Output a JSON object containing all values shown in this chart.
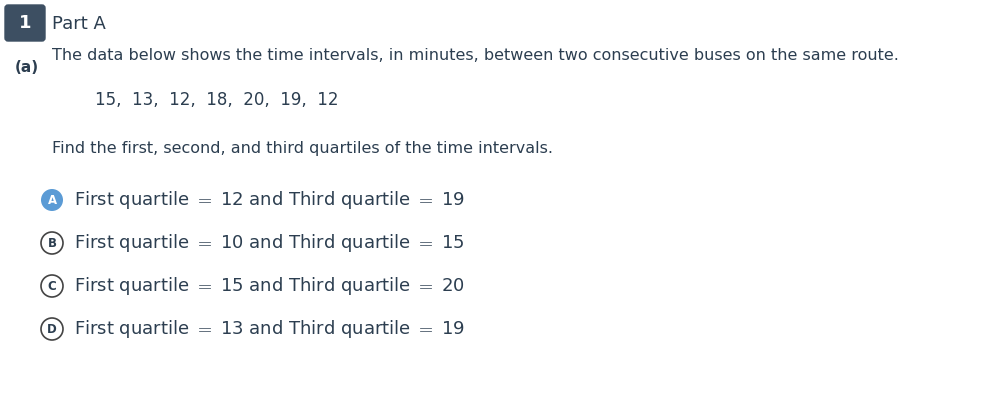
{
  "question_number": "1",
  "part_label": "Part A",
  "part_a_label": "(a)",
  "description": "The data below shows the time intervals, in minutes, between two consecutive buses on the same route.",
  "data_line": "15,  13,  12,  18,  20,  19,  12",
  "question_text": "Find the first, second, and third quartiles of the time intervals.",
  "options": [
    {
      "label": "A",
      "text": "First quartile $=$ 12 and Third quartile $=$ 19",
      "selected": true
    },
    {
      "label": "B",
      "text": "First quartile $=$ 10 and Third quartile $=$ 15",
      "selected": false
    },
    {
      "label": "C",
      "text": "First quartile $=$ 15 and Third quartile $=$ 20",
      "selected": false
    },
    {
      "label": "D",
      "text": "First quartile $=$ 13 and Third quartile $=$ 19",
      "selected": false
    }
  ],
  "number_box_color": "#3d4f62",
  "number_box_text_color": "#ffffff",
  "selected_circle_color": "#5b9bd5",
  "unselected_circle_color": "#ffffff",
  "unselected_circle_edge_color": "#444444",
  "text_color": "#2c3e50",
  "background_color": "#ffffff",
  "font_size_description": 11.5,
  "font_size_data": 12,
  "font_size_question": 11.5,
  "font_size_options": 13,
  "font_size_part": 13,
  "font_size_number": 13
}
